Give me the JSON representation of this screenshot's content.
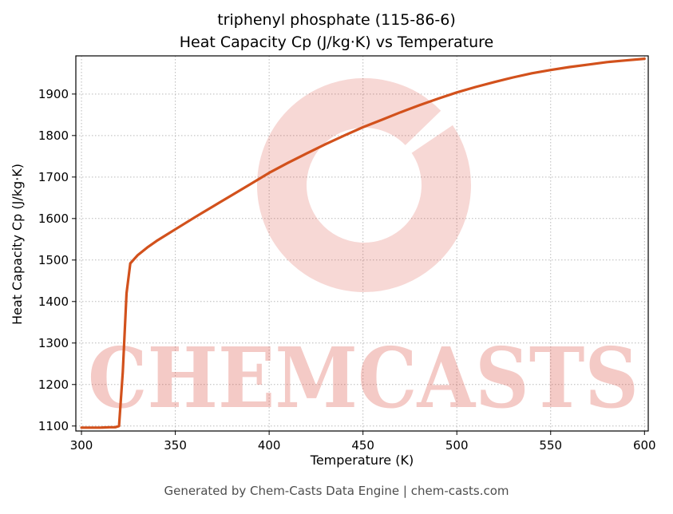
{
  "header": {
    "title_line1": "triphenyl phosphate (115-86-6)",
    "title_line2": "Heat Capacity Cp (J/kg·K) vs Temperature"
  },
  "footer": {
    "text": "Generated by Chem-Casts Data Engine | chem-casts.com"
  },
  "watermark": {
    "text": "CHEMCASTS",
    "text_color": "rgba(214,60,45,0.27)",
    "ring_color": "rgba(214,60,45,0.20)"
  },
  "chart_data": {
    "type": "line",
    "title_line1": "triphenyl phosphate (115-86-6)",
    "title_line2": "Heat Capacity Cp (J/kg·K) vs Temperature",
    "xlabel": "Temperature (K)",
    "ylabel": "Heat Capacity Cp (J/kg·K)",
    "xlim": [
      297,
      602
    ],
    "ylim": [
      1088,
      1992
    ],
    "xticks": [
      300,
      350,
      400,
      450,
      500,
      550,
      600
    ],
    "yticks": [
      1100,
      1200,
      1300,
      1400,
      1500,
      1600,
      1700,
      1800,
      1900
    ],
    "grid": true,
    "legend": "none",
    "line_color": "#d2511c",
    "line_width": 3.2,
    "series": [
      {
        "name": "Heat Capacity Cp",
        "x": [
          300,
          305,
          310,
          315,
          318,
          320,
          322,
          324,
          326,
          330,
          335,
          340,
          345,
          350,
          360,
          370,
          380,
          390,
          400,
          410,
          420,
          430,
          440,
          450,
          460,
          470,
          480,
          490,
          500,
          510,
          520,
          530,
          540,
          550,
          560,
          570,
          580,
          590,
          600
        ],
        "y": [
          1096,
          1096,
          1096,
          1097,
          1097,
          1100,
          1230,
          1420,
          1492,
          1512,
          1530,
          1546,
          1560,
          1574,
          1602,
          1629,
          1656,
          1683,
          1710,
          1734,
          1757,
          1779,
          1800,
          1820,
          1838,
          1856,
          1873,
          1889,
          1904,
          1917,
          1929,
          1940,
          1950,
          1958,
          1965,
          1971,
          1977,
          1981,
          1985
        ]
      }
    ]
  }
}
